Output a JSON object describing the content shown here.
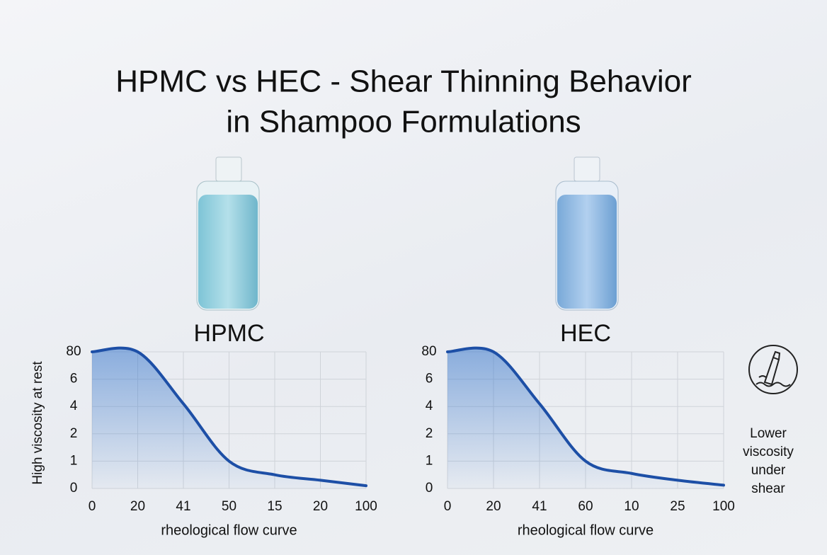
{
  "title": [
    "HPMC vs HEC - Shear Thinning Behavior",
    "in Shampoo Formulations"
  ],
  "annotation": "Lower viscosity under shear",
  "chart_data": [
    {
      "type": "line",
      "title": "HPMC",
      "ylabel": "High viscosity at rest",
      "xlabel": "rheological flow curve",
      "categories": [
        "0",
        "20",
        "41",
        "50",
        "15",
        "20",
        "100"
      ],
      "series": [
        {
          "color": "#1d4fa6",
          "values": [
            5,
            5,
            3.1,
            1.0,
            0.5,
            0.3,
            0.1
          ]
        }
      ],
      "ylim": [
        0,
        5
      ],
      "yticks": [
        0,
        1,
        2,
        {
          "value": 3,
          "label": "4"
        },
        {
          "value": 4,
          "label": "6"
        },
        {
          "value": 5,
          "label": "80"
        }
      ],
      "grid": true
    },
    {
      "type": "line",
      "title": "HEC",
      "xlabel": "rheological flow curve",
      "categories": [
        "0",
        "20",
        "41",
        "60",
        "10",
        "25",
        "100"
      ],
      "series": [
        {
          "color": "#1d4fa6",
          "values": [
            5,
            5,
            3.1,
            1.0,
            0.55,
            0.3,
            0.12
          ]
        }
      ],
      "ylim": [
        0,
        5
      ],
      "yticks": [
        0,
        1,
        2,
        {
          "value": 3,
          "label": "4"
        },
        {
          "value": 4,
          "label": "6"
        },
        {
          "value": 5,
          "label": "80"
        }
      ],
      "grid": true
    }
  ]
}
